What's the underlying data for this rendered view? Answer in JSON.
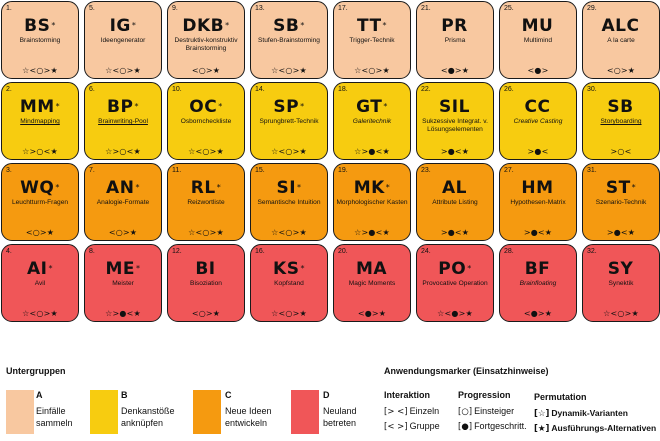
{
  "colors": {
    "A": "#f8c8a0",
    "B": "#f7cc10",
    "C": "#f59a10",
    "D": "#f05658"
  },
  "tiles": [
    {
      "n": "1.",
      "sym": "BS",
      "sup": "*",
      "name": "Brainstorming",
      "style": "",
      "markers": "☆<○>★",
      "g": "A"
    },
    {
      "n": "5.",
      "sym": "IG",
      "sup": "*",
      "name": "Ideengenerator",
      "style": "",
      "markers": "☆<○>★",
      "g": "A"
    },
    {
      "n": "9.",
      "sym": "DKB",
      "sup": "*",
      "name": "Destruktiv-konstruktiv Brainstorming",
      "style": "",
      "markers": "<○>★",
      "g": "A"
    },
    {
      "n": "13.",
      "sym": "SB",
      "sup": "*",
      "name": "Stufen-Brainstorming",
      "style": "",
      "markers": "☆<○>★",
      "g": "A"
    },
    {
      "n": "17.",
      "sym": "TT",
      "sup": "*",
      "name": "Trigger-Technik",
      "style": "",
      "markers": "☆<○>★",
      "g": "A"
    },
    {
      "n": "21.",
      "sym": "PR",
      "sup": "",
      "name": "Prisma",
      "style": "",
      "markers": "<●>★",
      "g": "A"
    },
    {
      "n": "25.",
      "sym": "MU",
      "sup": "",
      "name": "Multimind",
      "style": "",
      "markers": "<●>",
      "g": "A"
    },
    {
      "n": "29.",
      "sym": "ALC",
      "sup": "",
      "name": "A la carte",
      "style": "",
      "markers": "<○>★",
      "g": "A"
    },
    {
      "n": "2.",
      "sym": "MM",
      "sup": "*",
      "name": "Mindmapping",
      "style": "u",
      "markers": "☆>○<★",
      "g": "B"
    },
    {
      "n": "6.",
      "sym": "BP",
      "sup": "*",
      "name": "Brainwriting-Pool",
      "style": "u",
      "markers": "☆>○<★",
      "g": "B"
    },
    {
      "n": "10.",
      "sym": "OC",
      "sup": "*",
      "name": "Osborncheckliste",
      "style": "",
      "markers": "☆<○>★",
      "g": "B"
    },
    {
      "n": "14.",
      "sym": "SP",
      "sup": "*",
      "name": "Sprungbrett-Technik",
      "style": "",
      "markers": "☆<○>★",
      "g": "B"
    },
    {
      "n": "18.",
      "sym": "GT",
      "sup": "*",
      "name": "Galeritechnik",
      "style": "i",
      "markers": "☆>●<★",
      "g": "B"
    },
    {
      "n": "22.",
      "sym": "SIL",
      "sup": "",
      "name": "Sukzessive Integrat. v. Lösungselementen",
      "style": "",
      "markers": ">●<★",
      "g": "B"
    },
    {
      "n": "26.",
      "sym": "CC",
      "sup": "",
      "name": "Creative Casting",
      "style": "i",
      "markers": ">●<",
      "g": "B"
    },
    {
      "n": "30.",
      "sym": "SB",
      "sup": "",
      "name": "Storyboarding",
      "style": "u",
      "markers": ">○<",
      "g": "B"
    },
    {
      "n": "3.",
      "sym": "WQ",
      "sup": "*",
      "name": "Leuchtturm-Fragen",
      "style": "",
      "markers": "<○>★",
      "g": "C"
    },
    {
      "n": "7.",
      "sym": "AN",
      "sup": "*",
      "name": "Analogie-Formate",
      "style": "",
      "markers": "<○>★",
      "g": "C"
    },
    {
      "n": "11.",
      "sym": "RL",
      "sup": "*",
      "name": "Reizwortliste",
      "style": "",
      "markers": "☆<○>★",
      "g": "C"
    },
    {
      "n": "15.",
      "sym": "SI",
      "sup": "*",
      "name": "Semantische Intuition",
      "style": "",
      "markers": "☆<○>★",
      "g": "C"
    },
    {
      "n": "19.",
      "sym": "MK",
      "sup": "*",
      "name": "Morphologischer Kasten",
      "style": "",
      "markers": "☆>●<★",
      "g": "C"
    },
    {
      "n": "23.",
      "sym": "AL",
      "sup": "",
      "name": "Attribute Listing",
      "style": "",
      "markers": ">●<★",
      "g": "C"
    },
    {
      "n": "27.",
      "sym": "HM",
      "sup": "",
      "name": "Hypothesen-Matrix",
      "style": "",
      "markers": ">●<★",
      "g": "C"
    },
    {
      "n": "31.",
      "sym": "ST",
      "sup": "*",
      "name": "Szenario-Technik",
      "style": "",
      "markers": ">●<★",
      "g": "C"
    },
    {
      "n": "4.",
      "sym": "AI",
      "sup": "*",
      "name": "Avil",
      "style": "",
      "markers": "☆<○>★",
      "g": "D"
    },
    {
      "n": "8.",
      "sym": "ME",
      "sup": "*",
      "name": "Meister",
      "style": "",
      "markers": "☆>●<★",
      "g": "D"
    },
    {
      "n": "12.",
      "sym": "BI",
      "sup": "",
      "name": "Bisoziation",
      "style": "",
      "markers": "<○>★",
      "g": "D"
    },
    {
      "n": "16.",
      "sym": "KS",
      "sup": "*",
      "name": "Kopfstand",
      "style": "",
      "markers": "☆<○>★",
      "g": "D"
    },
    {
      "n": "20.",
      "sym": "MA",
      "sup": "",
      "name": "Magic Moments",
      "style": "",
      "markers": "<●>★",
      "g": "D"
    },
    {
      "n": "24.",
      "sym": "PO",
      "sup": "*",
      "name": "Provocative Operation",
      "style": "",
      "markers": "☆<●>★",
      "g": "D"
    },
    {
      "n": "28.",
      "sym": "BF",
      "sup": "",
      "name": "Brainfloating",
      "style": "i",
      "markers": "<●>★",
      "g": "D"
    },
    {
      "n": "32.",
      "sym": "SY",
      "sup": "",
      "name": "Synektik",
      "style": "",
      "markers": "☆<○>★",
      "g": "D"
    }
  ],
  "legend": {
    "title": "Untergruppen",
    "groups": [
      {
        "letter": "A",
        "text1": "Einfälle",
        "text2": "sammeln"
      },
      {
        "letter": "B",
        "text1": "Denkanstöße",
        "text2": "anknüpfen"
      },
      {
        "letter": "C",
        "text1": "Neue Ideen",
        "text2": "entwickeln"
      },
      {
        "letter": "D",
        "text1": "Neuland",
        "text2": "betreten"
      }
    ]
  },
  "markers_legend": {
    "title": "Anwendungsmarker (Einsatzhinweise)",
    "interaktion": {
      "head": "Interaktion",
      "l1_sym": "[> <]",
      "l1_text": "Einzeln",
      "l2_sym": "[< >]",
      "l2_text": "Gruppe"
    },
    "progression": {
      "head": "Progression",
      "l1_sym": "[○]",
      "l1_text": "Einsteiger",
      "l2_sym": "[●]",
      "l2_text": "Fortgeschritt."
    },
    "permutation": {
      "head": "Permutation",
      "l1_sym": "[☆]",
      "l1_text": "Dynamik-Varianten",
      "l2_sym": "[★]",
      "l2_text": "Ausführungs-Alternativen"
    }
  }
}
